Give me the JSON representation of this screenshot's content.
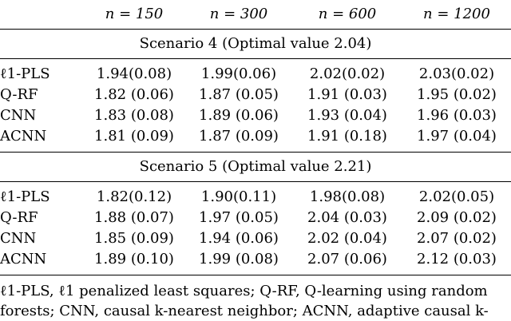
{
  "table": {
    "columns": [
      "",
      "n = 150",
      "n = 300",
      "n = 600",
      "n = 1200"
    ],
    "scenarios": [
      {
        "title": "Scenario 4 (Optimal value 2.04)",
        "rows": [
          {
            "method": "ℓ1-PLS",
            "values": [
              "1.94(0.08)",
              "1.99(0.06)",
              "2.02(0.02)",
              "2.03(0.02)"
            ],
            "bold": true
          },
          {
            "method": "Q-RF",
            "values": [
              "1.82 (0.06)",
              "1.87 (0.05)",
              "1.91 (0.03)",
              "1.95 (0.02)"
            ],
            "bold": false
          },
          {
            "method": "CNN",
            "values": [
              "1.83 (0.08)",
              "1.89 (0.06)",
              "1.93 (0.04)",
              "1.96 (0.03)"
            ],
            "bold": false
          },
          {
            "method": "ACNN",
            "values": [
              "1.81 (0.09)",
              "1.87 (0.09)",
              "1.91 (0.18)",
              "1.97 (0.04)"
            ],
            "bold": false
          }
        ]
      },
      {
        "title": "Scenario 5 (Optimal value 2.21)",
        "rows": [
          {
            "method": "ℓ1-PLS",
            "values": [
              "1.82(0.12)",
              "1.90(0.11)",
              "1.98(0.08)",
              "2.02(0.05)"
            ],
            "bold": false
          },
          {
            "method": "Q-RF",
            "values": [
              "1.88 (0.07)",
              "1.97 (0.05)",
              "2.04 (0.03)",
              "2.09 (0.02)"
            ],
            "bold": false
          },
          {
            "method": "CNN",
            "values": [
              "1.85 (0.09)",
              "1.94 (0.06)",
              "2.02 (0.04)",
              "2.07 (0.02)"
            ],
            "bold": false
          },
          {
            "method": "ACNN",
            "values": [
              "1.89 (0.10)",
              "1.99 (0.08)",
              "2.07 (0.06)",
              "2.12 (0.03)"
            ],
            "bold": true
          }
        ]
      }
    ]
  },
  "caption": {
    "line1": "ℓ1-PLS, ℓ1 penalized least squares; Q-RF, Q-learning using random",
    "line2": "forests; CNN, causal k-nearest neighbor; ACNN, adaptive causal k-"
  }
}
